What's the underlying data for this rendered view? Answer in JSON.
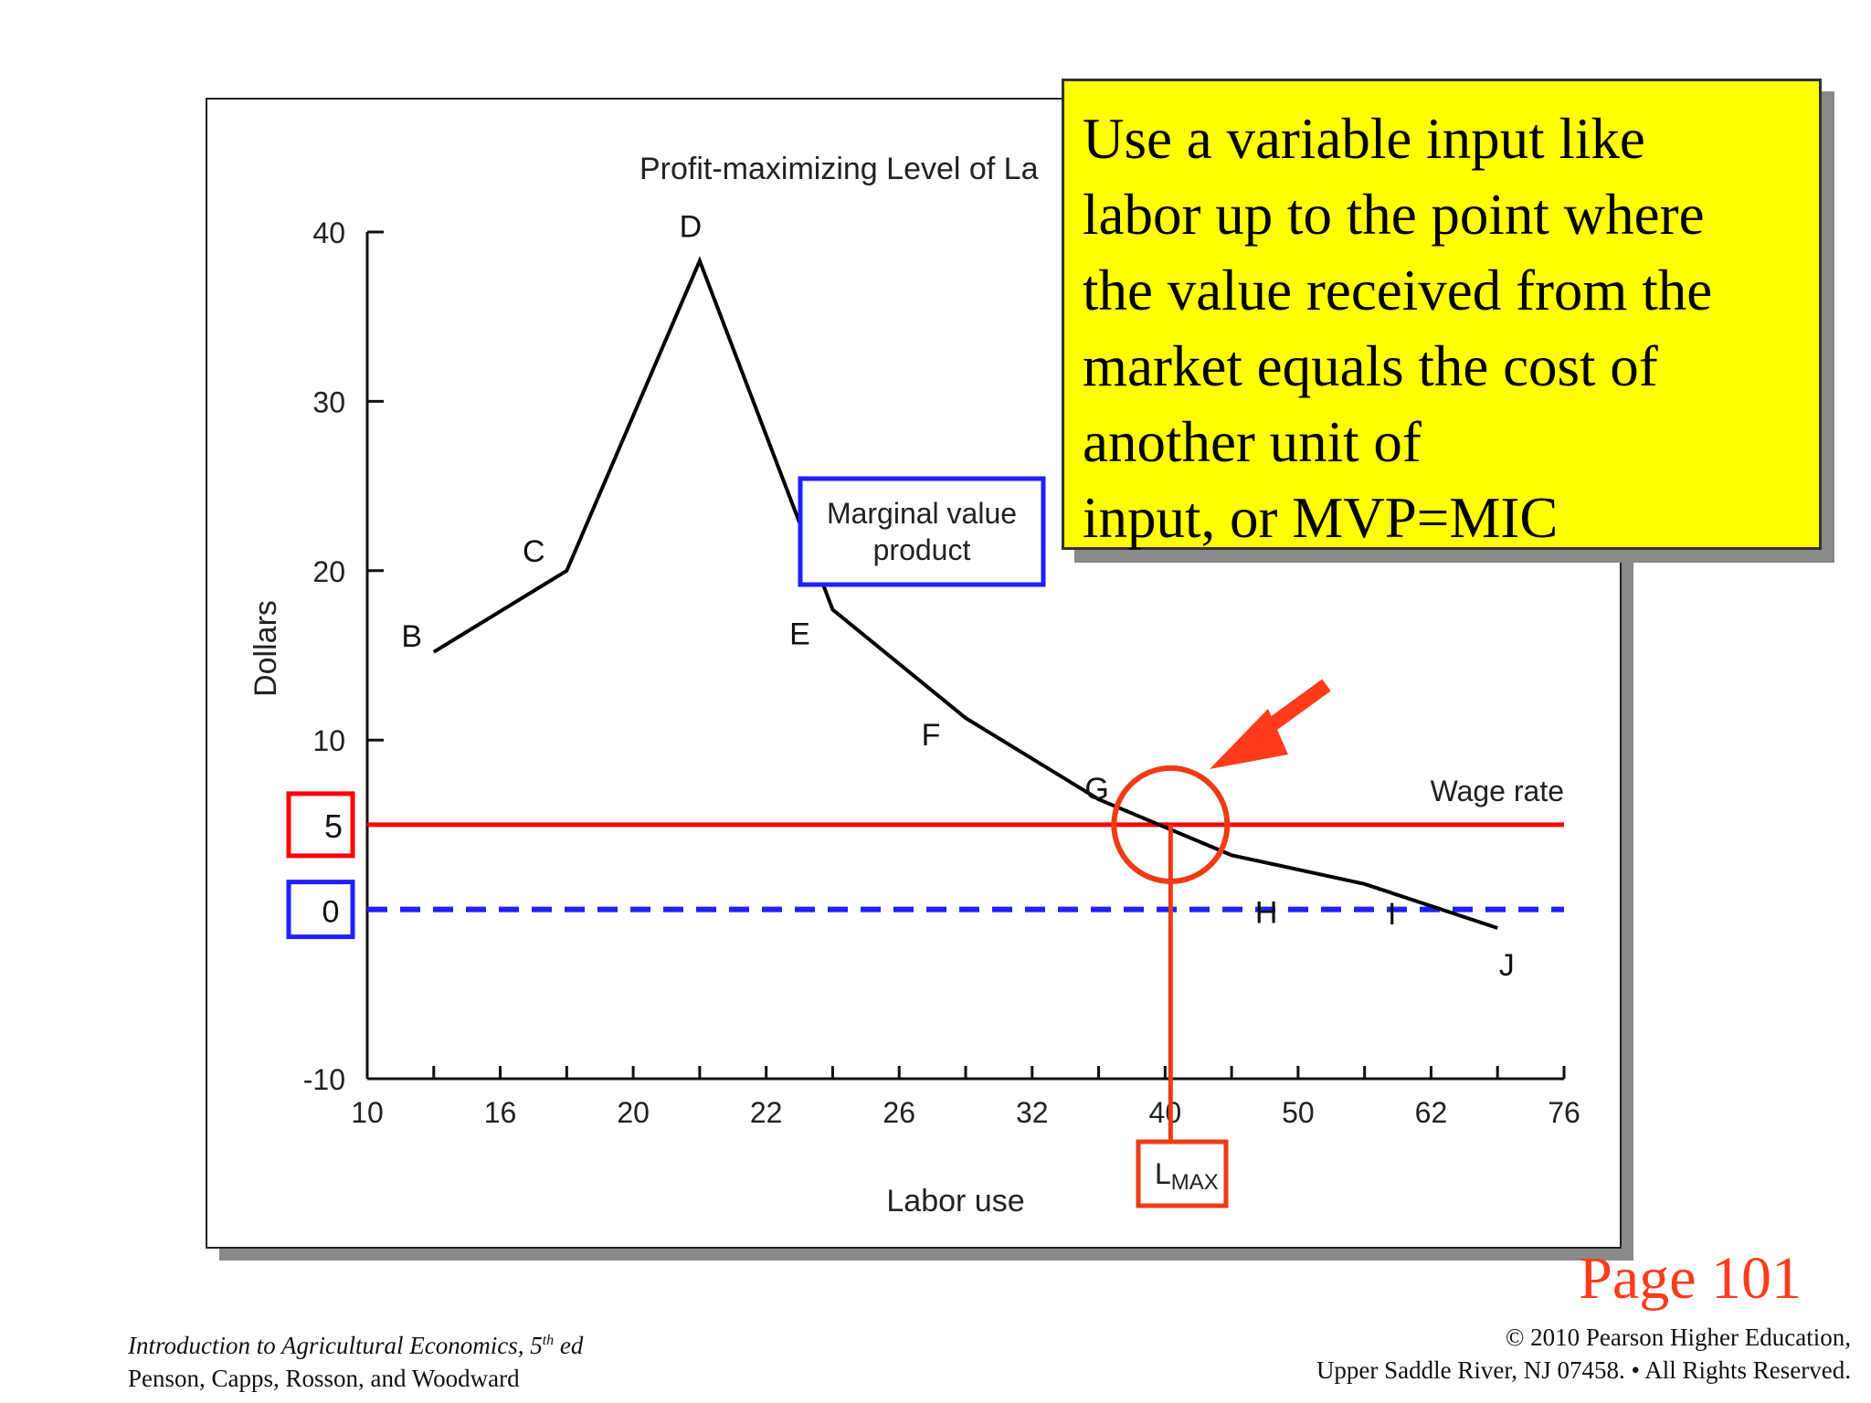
{
  "chart_data": {
    "type": "line",
    "title": "Profit-maximizing Level of La",
    "xlabel": "Labor use",
    "ylabel": "Dollars",
    "x_categories": [
      "10",
      "16",
      "20",
      "22",
      "26",
      "32",
      "40",
      "50",
      "62",
      "76"
    ],
    "y_ticks": [
      "40",
      "30",
      "20",
      "10",
      "-10"
    ],
    "ylim": [
      -10,
      40
    ],
    "series": [
      {
        "name": "Marginal value product",
        "points": [
          {
            "label": "B",
            "x_index": 0.5,
            "y": 15.2
          },
          {
            "label": "C",
            "x_index": 1.5,
            "y": 20.0
          },
          {
            "label": "D",
            "x_index": 2.5,
            "y": 38.3
          },
          {
            "label": "E",
            "x_index": 3.5,
            "y": 17.7
          },
          {
            "label": "F",
            "x_index": 4.5,
            "y": 11.3
          },
          {
            "label": "G",
            "x_index": 5.5,
            "y": 6.5
          },
          {
            "label": "H",
            "x_index": 6.5,
            "y": 3.2
          },
          {
            "label": "I",
            "x_index": 7.5,
            "y": 1.5
          },
          {
            "label": "J",
            "x_index": 8.5,
            "y": -1.1
          }
        ]
      }
    ],
    "wage_rate": {
      "label": "Wage rate",
      "y": 5
    },
    "zero_line": {
      "y": 0
    },
    "highlight_labels": {
      "five": "5",
      "zero": "0"
    },
    "lmax": {
      "label_main": "L",
      "label_sub": "MAX",
      "x_index": 6.0,
      "y": 5
    },
    "colors": {
      "mvp": "#000000",
      "wage": "#ff0000",
      "zero": "#1f1fff",
      "lmax": "#ee3b14",
      "arrow": "#ff3b1a"
    }
  },
  "callout": {
    "lines": [
      "Use a variable input like",
      "labor up to the point where",
      "the value received from the",
      "market equals the cost of",
      "another unit of",
      "input, or MVP=MIC"
    ]
  },
  "page_label": "Page 101",
  "footer": {
    "book_title": "Introduction to Agricultural Economics, 5",
    "edition_sup": "th",
    "edition_suffix": " ed",
    "authors": "Penson, Capps, Rosson, and Woodward",
    "copyright": "© 2010 Pearson Higher Education,",
    "address": "Upper Saddle River, NJ 07458. • All Rights Reserved."
  }
}
